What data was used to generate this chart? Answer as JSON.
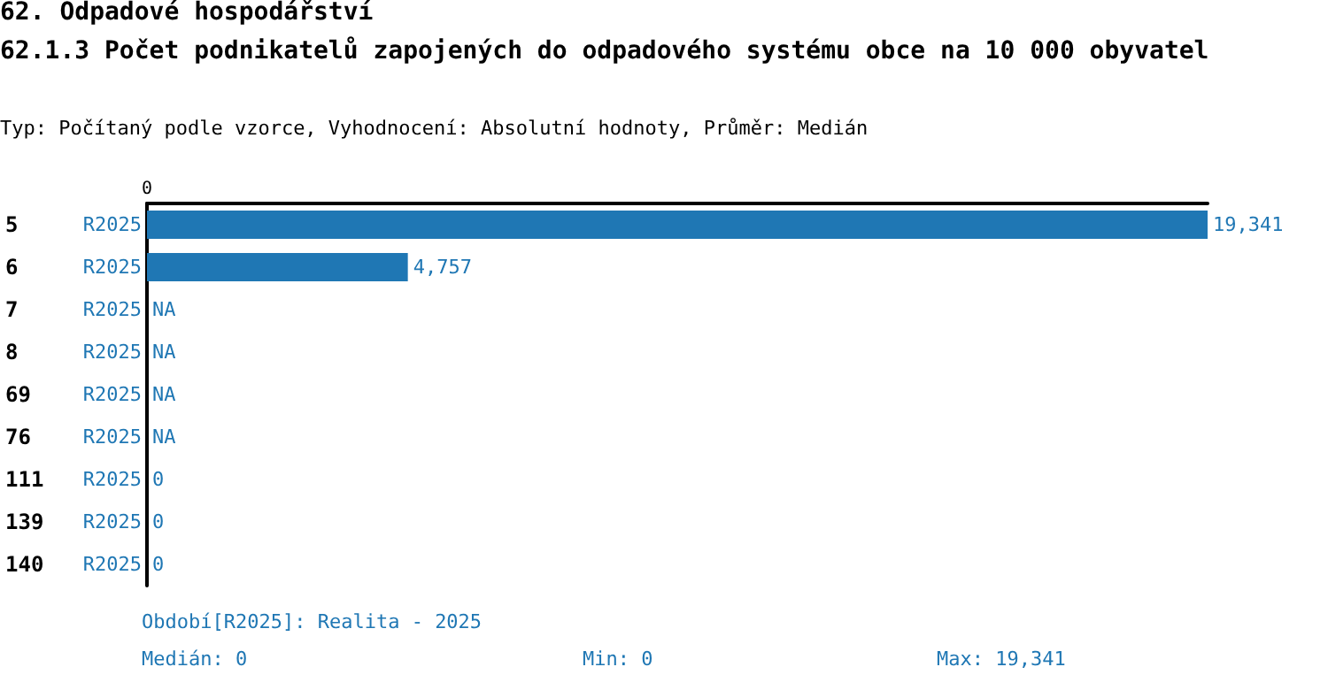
{
  "chart_data": {
    "type": "bar",
    "orientation": "horizontal",
    "title": "62. Odpadové hospodářství",
    "subtitle": "62.1.3 Počet podnikatelů zapojených do odpadového systému obce na 10 000 obyvatel",
    "categories": [
      "5",
      "6",
      "7",
      "8",
      "69",
      "76",
      "111",
      "139",
      "140"
    ],
    "series": [
      {
        "name": "R2025",
        "color": "#1f77b4",
        "values": [
          19341,
          4757,
          null,
          null,
          null,
          null,
          0,
          0,
          0
        ],
        "value_labels": [
          "19,341",
          "4,757",
          "NA",
          "NA",
          "NA",
          "NA",
          "0",
          "0",
          "0"
        ]
      }
    ],
    "xlim": [
      0,
      19341
    ],
    "grid": false,
    "legend": false,
    "annotations": [
      "0",
      "Typ: Počítaný podle vzorce, Vyhodnocení: Absolutní hodnoty, Průměr: Medián",
      "Období[R2025]: Realita - 2025",
      "Medián: 0",
      "Min: 0",
      "Max: 19,341"
    ]
  }
}
